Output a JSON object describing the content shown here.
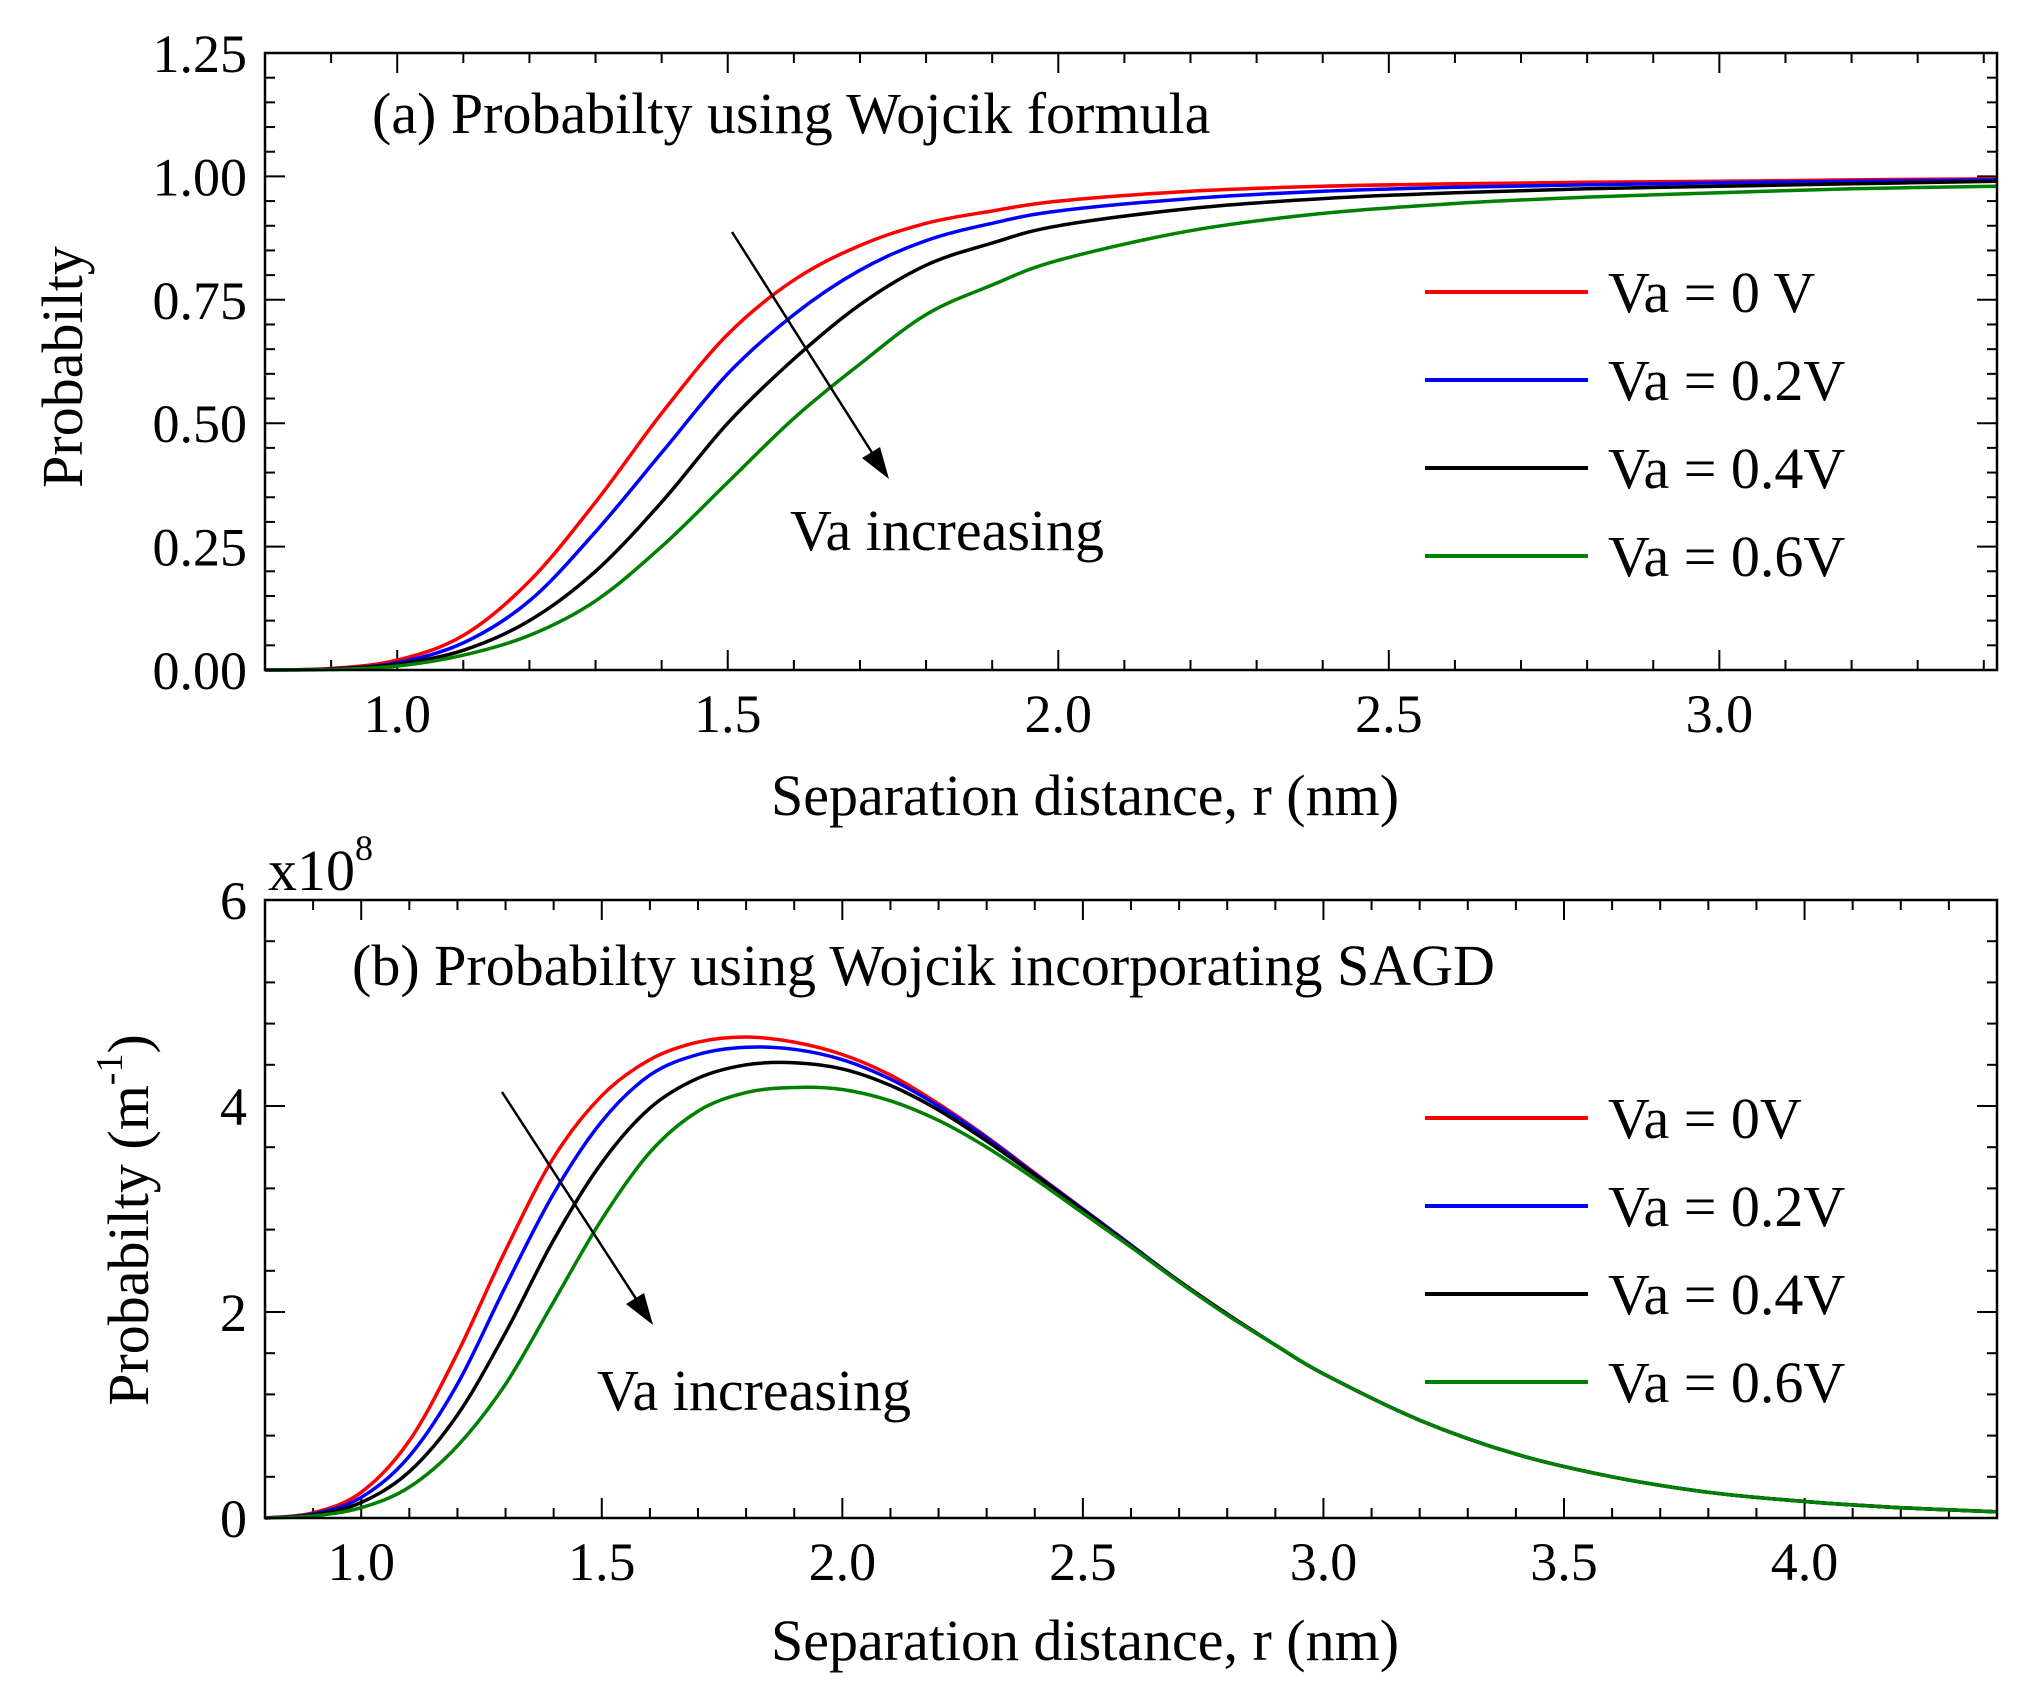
{
  "chart_data": [
    {
      "type": "line",
      "panel_label": "(a) Probabilty using Wojcik formula",
      "xlabel": "Separation distance, r (nm)",
      "ylabel": "Probabilty",
      "xlim": [
        0.8,
        3.42
      ],
      "ylim": [
        0,
        1.25
      ],
      "xticks": [
        1.0,
        1.5,
        2.0,
        2.5,
        3.0
      ],
      "xtick_labels": [
        "1.0",
        "1.5",
        "2.0",
        "2.5",
        "3.0"
      ],
      "yticks": [
        0,
        0.25,
        0.5,
        0.75,
        1.0,
        1.25
      ],
      "ytick_labels": [
        "0.00",
        "0.25",
        "0.50",
        "0.75",
        "1.00",
        "1.25"
      ],
      "annotation": "Va increasing",
      "legend_position": "right",
      "x": [
        0.8,
        0.9,
        1.0,
        1.1,
        1.2,
        1.3,
        1.4,
        1.5,
        1.6,
        1.7,
        1.8,
        1.9,
        2.0,
        2.2,
        2.4,
        2.6,
        2.8,
        3.0,
        3.2,
        3.42
      ],
      "series": [
        {
          "name": "Va = 0 V",
          "color": "#ff0000",
          "values": [
            0.0,
            0.003,
            0.02,
            0.07,
            0.18,
            0.34,
            0.52,
            0.68,
            0.79,
            0.86,
            0.905,
            0.93,
            0.95,
            0.97,
            0.98,
            0.985,
            0.988,
            0.99,
            0.993,
            0.995
          ]
        },
        {
          "name": "Va = 0.2V",
          "color": "#0000ff",
          "values": [
            0.0,
            0.002,
            0.015,
            0.055,
            0.14,
            0.28,
            0.44,
            0.6,
            0.72,
            0.81,
            0.87,
            0.905,
            0.93,
            0.955,
            0.97,
            0.978,
            0.983,
            0.987,
            0.99,
            0.993
          ]
        },
        {
          "name": "Va = 0.4V",
          "color": "#000000",
          "values": [
            0.0,
            0.002,
            0.012,
            0.04,
            0.1,
            0.2,
            0.34,
            0.5,
            0.63,
            0.74,
            0.82,
            0.865,
            0.9,
            0.935,
            0.955,
            0.967,
            0.975,
            0.98,
            0.985,
            0.99
          ]
        },
        {
          "name": "Va = 0.6V",
          "color": "#008000",
          "values": [
            0.0,
            0.001,
            0.008,
            0.03,
            0.07,
            0.14,
            0.25,
            0.38,
            0.51,
            0.62,
            0.72,
            0.78,
            0.83,
            0.89,
            0.925,
            0.945,
            0.958,
            0.967,
            0.975,
            0.98
          ]
        }
      ]
    },
    {
      "type": "line",
      "panel_label": "(b) Probabilty using Wojcik incorporating SAGD",
      "xlabel": "Separation distance, r (nm)",
      "ylabel": "Probabilty (m",
      "ylabel_sup": "-1",
      "ylabel_tail": ")",
      "y_multiplier": "x10",
      "y_multiplier_exp": "8",
      "xlim": [
        0.8,
        4.4
      ],
      "ylim": [
        0,
        6
      ],
      "xticks": [
        1.0,
        1.5,
        2.0,
        2.5,
        3.0,
        3.5,
        4.0
      ],
      "xtick_labels": [
        "1.0",
        "1.5",
        "2.0",
        "2.5",
        "3.0",
        "3.5",
        "4.0"
      ],
      "yticks": [
        0,
        2,
        4,
        6
      ],
      "ytick_labels": [
        "0",
        "2",
        "4",
        "6"
      ],
      "annotation": "Va increasing",
      "legend_position": "right",
      "x": [
        0.8,
        0.9,
        1.0,
        1.1,
        1.2,
        1.3,
        1.4,
        1.5,
        1.6,
        1.7,
        1.8,
        1.9,
        2.0,
        2.1,
        2.2,
        2.3,
        2.4,
        2.5,
        2.6,
        2.7,
        2.8,
        2.9,
        3.0,
        3.2,
        3.4,
        3.6,
        3.8,
        4.0,
        4.2,
        4.4
      ],
      "series": [
        {
          "name": "Va = 0V",
          "color": "#ff0000",
          "values": [
            0.0,
            0.05,
            0.25,
            0.75,
            1.6,
            2.6,
            3.5,
            4.1,
            4.45,
            4.62,
            4.67,
            4.62,
            4.5,
            4.3,
            4.02,
            3.7,
            3.35,
            3.0,
            2.65,
            2.3,
            1.98,
            1.68,
            1.4,
            0.95,
            0.62,
            0.4,
            0.25,
            0.16,
            0.1,
            0.06
          ]
        },
        {
          "name": "Va = 0.2V",
          "color": "#0000ff",
          "values": [
            0.0,
            0.04,
            0.2,
            0.6,
            1.3,
            2.25,
            3.15,
            3.85,
            4.3,
            4.5,
            4.57,
            4.55,
            4.45,
            4.26,
            4.0,
            3.69,
            3.34,
            3.0,
            2.65,
            2.3,
            1.98,
            1.68,
            1.4,
            0.95,
            0.62,
            0.4,
            0.25,
            0.16,
            0.1,
            0.06
          ]
        },
        {
          "name": "Va = 0.4V",
          "color": "#000000",
          "values": [
            0.0,
            0.03,
            0.15,
            0.45,
            1.0,
            1.8,
            2.7,
            3.45,
            3.98,
            4.27,
            4.4,
            4.42,
            4.36,
            4.2,
            3.96,
            3.66,
            3.33,
            2.99,
            2.64,
            2.3,
            1.98,
            1.68,
            1.4,
            0.95,
            0.62,
            0.4,
            0.25,
            0.16,
            0.1,
            0.06
          ]
        },
        {
          "name": "Va = 0.6V",
          "color": "#008000",
          "values": [
            0.0,
            0.02,
            0.1,
            0.3,
            0.7,
            1.3,
            2.1,
            2.9,
            3.55,
            3.95,
            4.13,
            4.18,
            4.16,
            4.05,
            3.86,
            3.6,
            3.29,
            2.96,
            2.63,
            2.29,
            1.97,
            1.68,
            1.4,
            0.95,
            0.62,
            0.4,
            0.25,
            0.16,
            0.1,
            0.06
          ]
        }
      ]
    }
  ]
}
